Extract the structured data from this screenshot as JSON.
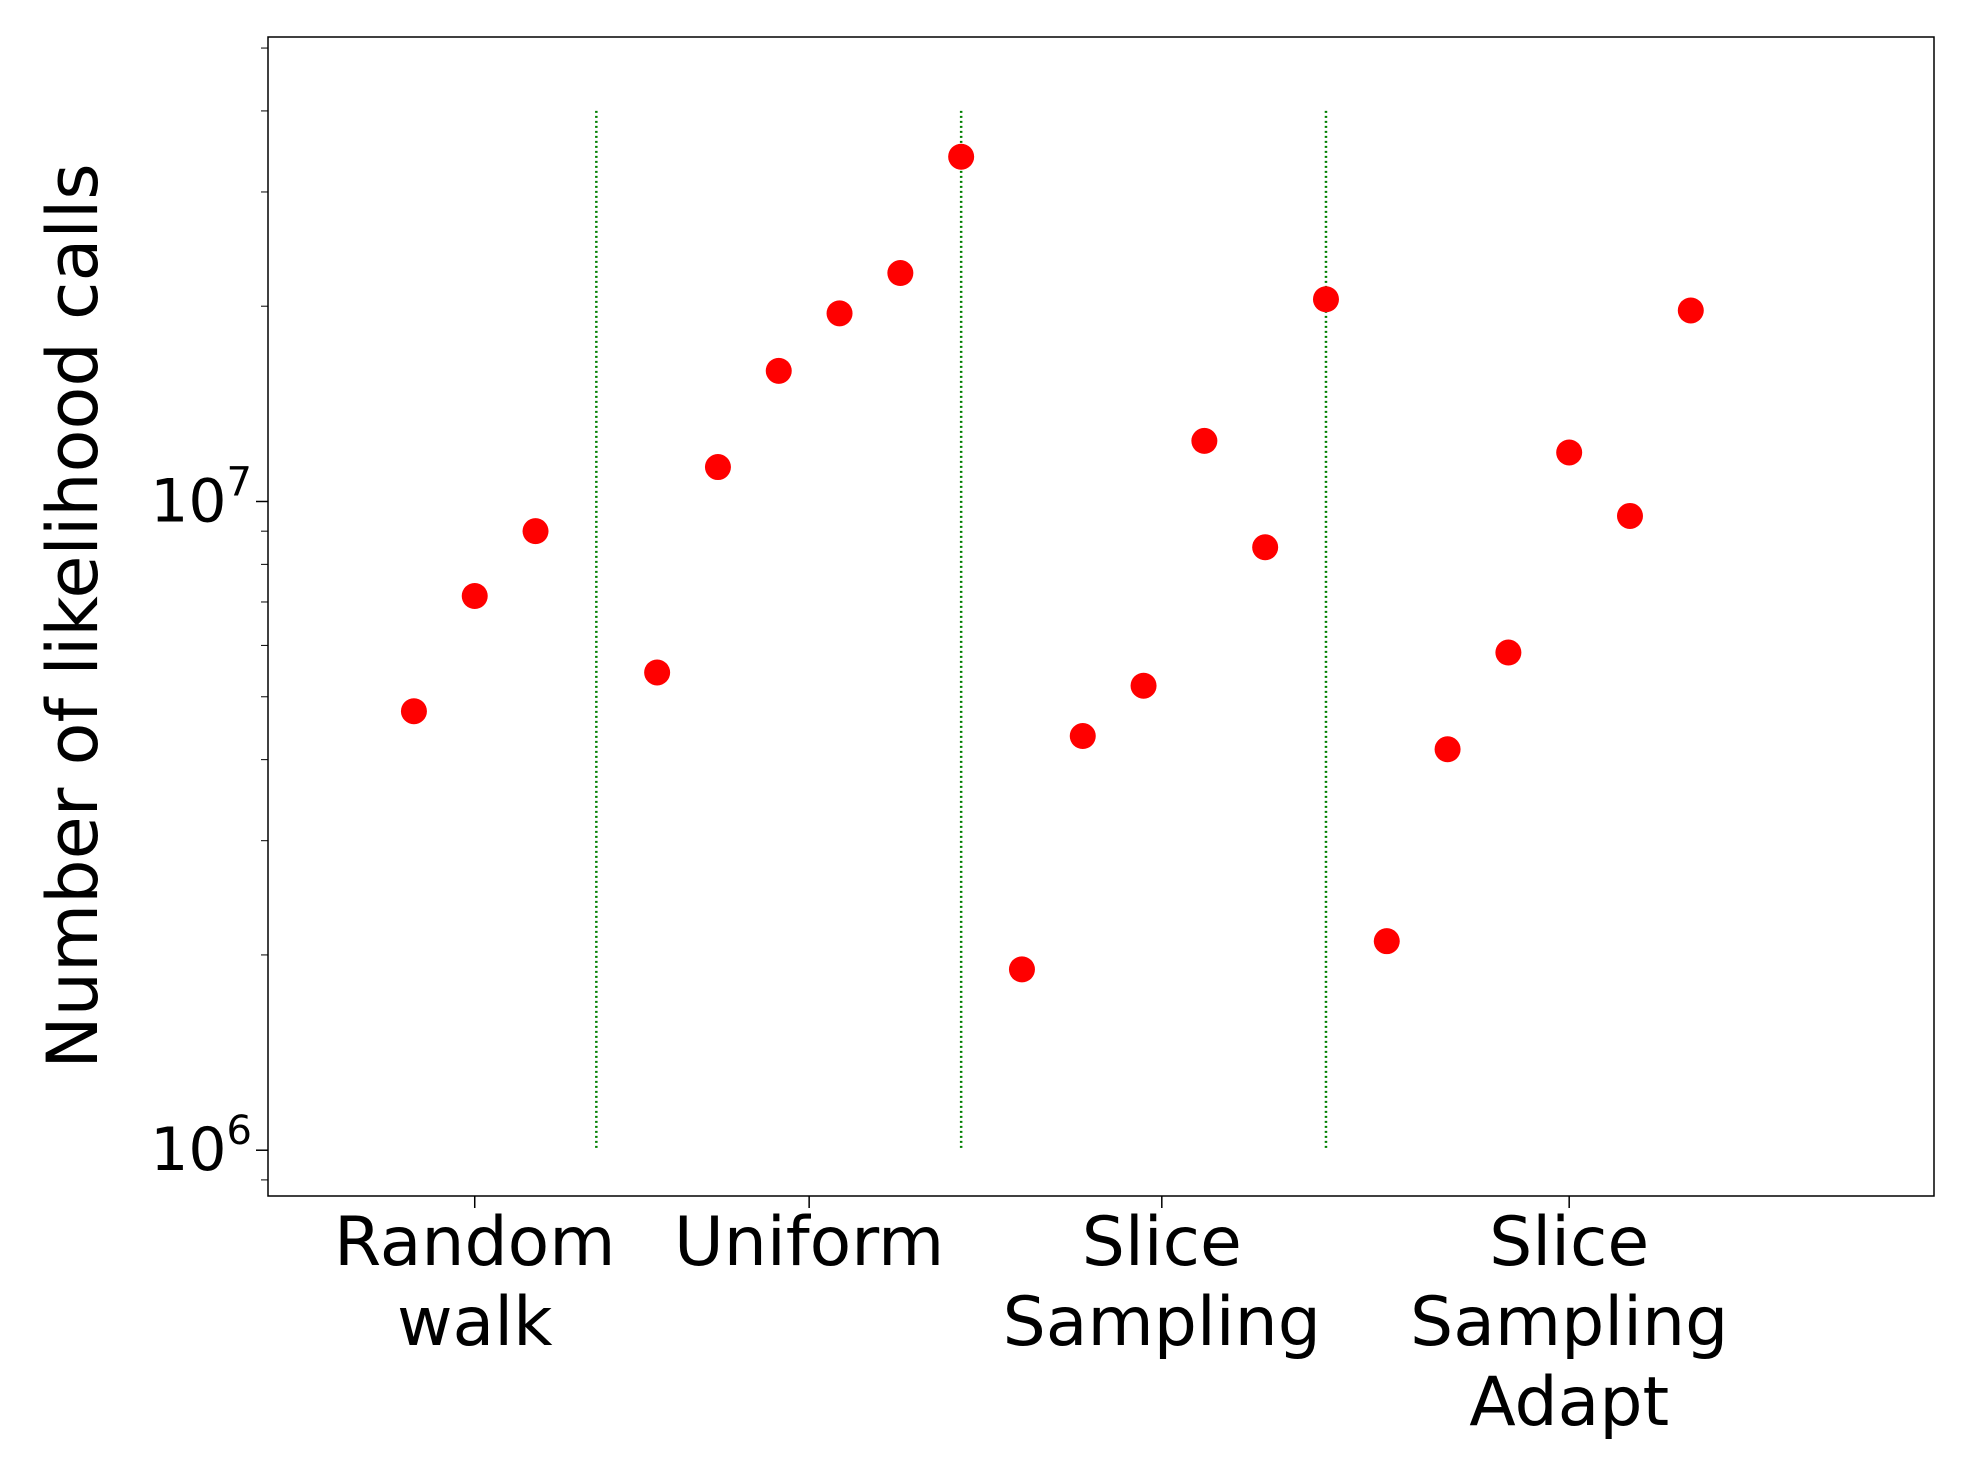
{
  "chart_data": {
    "type": "scatter",
    "title": "",
    "xlabel": "",
    "ylabel": "Number of likelihood calls",
    "yscale": "log",
    "ylim": [
      850000,
      52000000
    ],
    "yticks": [
      {
        "value": 1000000,
        "base": "10",
        "exp": "6"
      },
      {
        "value": 10000000,
        "base": "10",
        "exp": "7"
      }
    ],
    "grid": false,
    "legend": "none",
    "categories": [
      {
        "lines": [
          "Random",
          "walk"
        ],
        "x": 0.5
      },
      {
        "lines": [
          "Uniform"
        ],
        "x": 3.25
      },
      {
        "lines": [
          "Slice",
          "Sampling"
        ],
        "x": 6.15
      },
      {
        "lines": [
          "Slice",
          "Sampling",
          "Adapt"
        ],
        "x": 9.5
      }
    ],
    "xlim": [
      -1.2,
      12.5
    ],
    "dividers": [
      1.5,
      4.5,
      7.5
    ],
    "divider_range": [
      1000000,
      40000000
    ],
    "marker_color": "#ff0000",
    "divider_color": "#008000",
    "points": [
      {
        "x": 0,
        "y": 4750000
      },
      {
        "x": 0.5,
        "y": 7150000
      },
      {
        "x": 1,
        "y": 9000000
      },
      {
        "x": 2,
        "y": 5450000
      },
      {
        "x": 2.5,
        "y": 11300000
      },
      {
        "x": 3,
        "y": 15900000
      },
      {
        "x": 3.5,
        "y": 19500000
      },
      {
        "x": 4,
        "y": 22500000
      },
      {
        "x": 4.5,
        "y": 34000000
      },
      {
        "x": 5,
        "y": 1900000
      },
      {
        "x": 5.5,
        "y": 4350000
      },
      {
        "x": 6,
        "y": 5200000
      },
      {
        "x": 6.5,
        "y": 12400000
      },
      {
        "x": 7,
        "y": 8500000
      },
      {
        "x": 7.5,
        "y": 20500000
      },
      {
        "x": 8,
        "y": 2100000
      },
      {
        "x": 8.5,
        "y": 4150000
      },
      {
        "x": 9,
        "y": 5850000
      },
      {
        "x": 9.5,
        "y": 11900000
      },
      {
        "x": 10,
        "y": 9500000
      },
      {
        "x": 10.5,
        "y": 19700000
      }
    ]
  }
}
